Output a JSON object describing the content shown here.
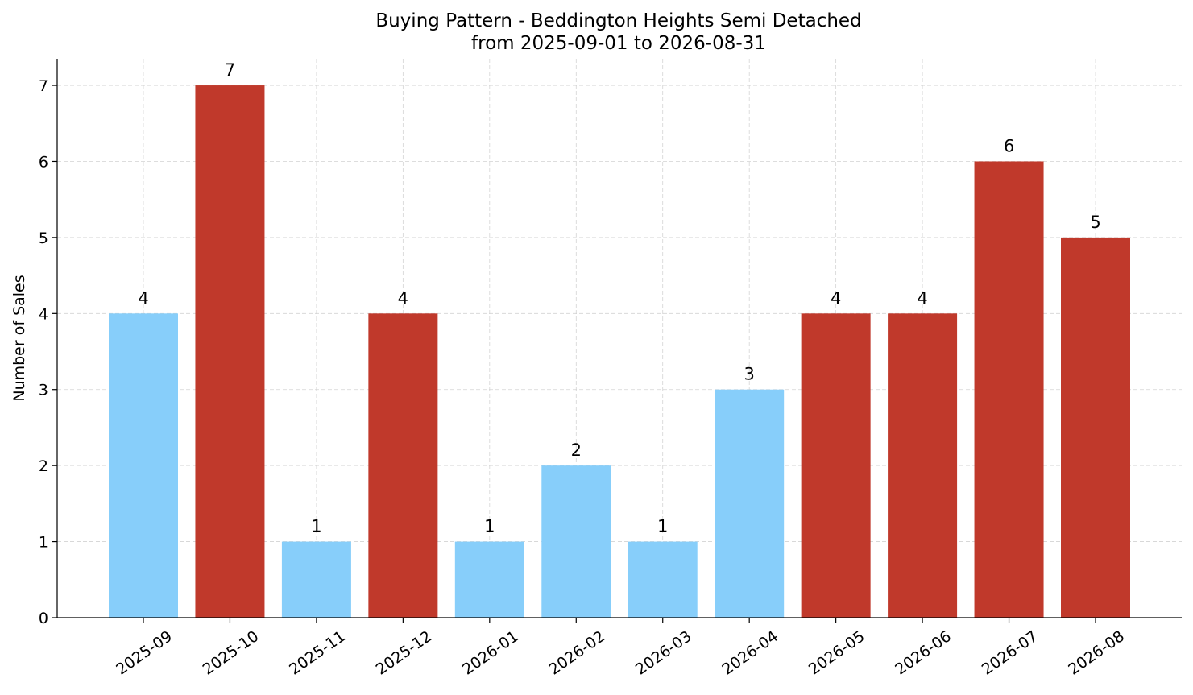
{
  "chart_data": {
    "type": "bar",
    "title": "Buying Pattern - Beddington Heights Semi Detached",
    "subtitle": "from 2025-09-01 to 2026-08-31",
    "xlabel": "",
    "ylabel": "Number of Sales",
    "categories": [
      "2025-09",
      "2025-10",
      "2025-11",
      "2025-12",
      "2026-01",
      "2026-02",
      "2026-03",
      "2026-04",
      "2026-05",
      "2026-06",
      "2026-07",
      "2026-08"
    ],
    "values": [
      4,
      7,
      1,
      4,
      1,
      2,
      1,
      3,
      4,
      4,
      6,
      5
    ],
    "bar_colors": [
      "#87CEFA",
      "#C0392B",
      "#87CEFA",
      "#C0392B",
      "#87CEFA",
      "#87CEFA",
      "#87CEFA",
      "#87CEFA",
      "#C0392B",
      "#C0392B",
      "#C0392B",
      "#C0392B"
    ],
    "colors": {
      "light": "#87CEFA",
      "dark": "#C0392B"
    },
    "ylim": [
      0,
      7.35
    ],
    "yticks": [
      0,
      1,
      2,
      3,
      4,
      5,
      6,
      7
    ],
    "grid": true,
    "legend": "none",
    "data_labels": true,
    "xtick_rotation": 35
  }
}
